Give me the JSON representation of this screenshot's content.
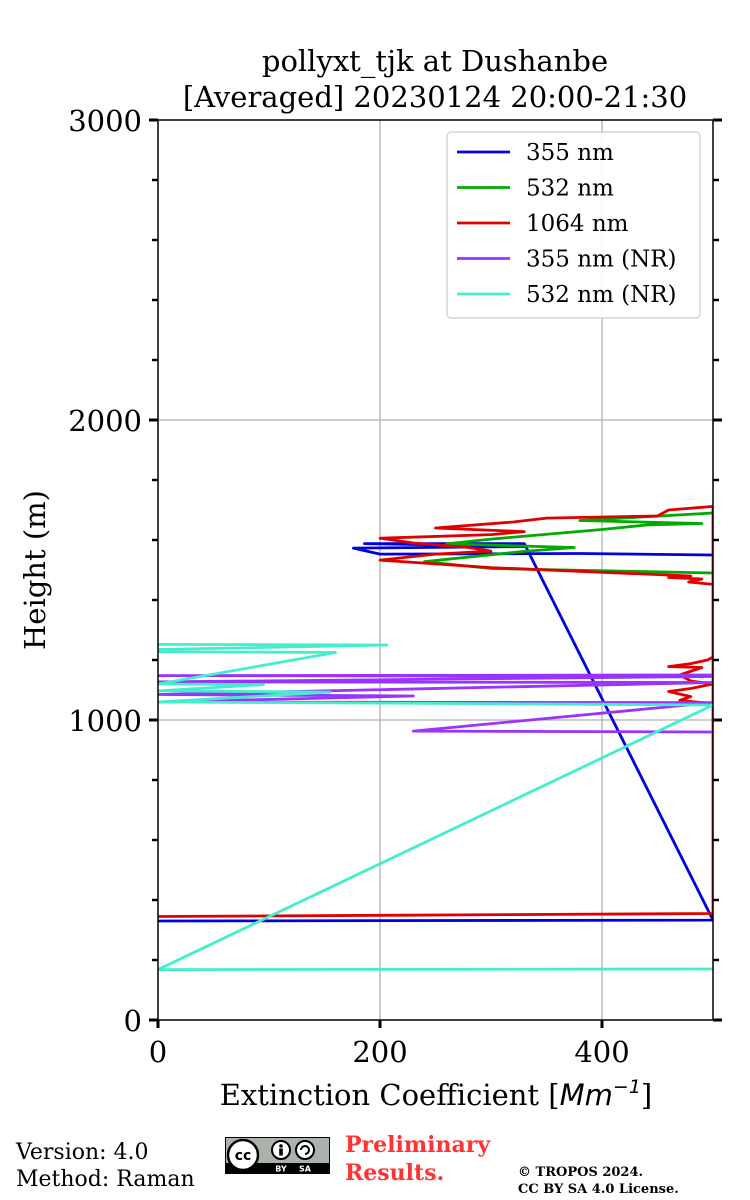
{
  "chart_data": {
    "type": "line",
    "title_line1": "pollyxt_tjk at Dushanbe",
    "title_line2": "[Averaged] 20230124 20:00-21:30",
    "xlabel_prefix": "Extinction Coefficient [",
    "xlabel_unit_base": "Mm",
    "xlabel_unit_exp": "−1",
    "xlabel_suffix": "]",
    "ylabel": "Height (m)",
    "xlim": [
      0,
      500
    ],
    "ylim": [
      0,
      3000
    ],
    "x_ticks": [
      "0",
      "200",
      "400"
    ],
    "x_tick_values": [
      0,
      200,
      400
    ],
    "y_ticks": [
      "0",
      "1000",
      "2000",
      "3000"
    ],
    "y_tick_values": [
      0,
      1000,
      2000,
      3000
    ],
    "y_minor_step": 200,
    "grid": true,
    "legend_position": "top-right",
    "series": [
      {
        "name": "355 nm",
        "color": "#0000e0",
        "points": [
          [
            500,
            1550
          ],
          [
            380,
            1555
          ],
          [
            200,
            1553
          ],
          [
            176,
            1573
          ],
          [
            330,
            1578
          ],
          [
            260,
            1583
          ],
          [
            186,
            1588
          ],
          [
            330,
            1588
          ],
          [
            500,
            333
          ],
          [
            0,
            330
          ]
        ]
      },
      {
        "name": "532 nm",
        "color": "#00aa00",
        "points": [
          [
            500,
            1490
          ],
          [
            300,
            1505
          ],
          [
            240,
            1528
          ],
          [
            330,
            1562
          ],
          [
            375,
            1575
          ],
          [
            260,
            1587
          ],
          [
            300,
            1603
          ],
          [
            400,
            1635
          ],
          [
            440,
            1650
          ],
          [
            490,
            1655
          ],
          [
            380,
            1665
          ],
          [
            500,
            1690
          ]
        ]
      },
      {
        "name": "1064 nm",
        "color": "#e00000",
        "points": [
          [
            500,
            1452
          ],
          [
            478,
            1460
          ],
          [
            490,
            1470
          ],
          [
            460,
            1475
          ],
          [
            480,
            1480
          ],
          [
            300,
            1508
          ],
          [
            220,
            1528
          ],
          [
            200,
            1533
          ],
          [
            250,
            1553
          ],
          [
            300,
            1563
          ],
          [
            280,
            1575
          ],
          [
            230,
            1590
          ],
          [
            200,
            1606
          ],
          [
            300,
            1618
          ],
          [
            330,
            1628
          ],
          [
            250,
            1640
          ],
          [
            320,
            1660
          ],
          [
            350,
            1673
          ],
          [
            450,
            1680
          ],
          [
            460,
            1700
          ],
          [
            500,
            1712
          ],
          [
            500,
            1055
          ],
          [
            470,
            1065
          ],
          [
            480,
            1078
          ],
          [
            460,
            1095
          ],
          [
            480,
            1105
          ],
          [
            500,
            1120
          ],
          [
            480,
            1130
          ],
          [
            470,
            1150
          ],
          [
            490,
            1175
          ],
          [
            460,
            1178
          ],
          [
            480,
            1188
          ],
          [
            495,
            1200
          ],
          [
            500,
            1210
          ],
          [
            500,
            355
          ],
          [
            0,
            345
          ]
        ]
      },
      {
        "name": "355 nm (NR)",
        "color": "#9933ff",
        "points": [
          [
            500,
            960
          ],
          [
            230,
            963
          ],
          [
            500,
            1058
          ],
          [
            0,
            1060
          ],
          [
            230,
            1080
          ],
          [
            0,
            1085
          ],
          [
            500,
            1125
          ],
          [
            0,
            1127
          ],
          [
            500,
            1145
          ],
          [
            0,
            1148
          ],
          [
            500,
            1150
          ]
        ]
      },
      {
        "name": "532 nm (NR)",
        "color": "#44eecc",
        "points": [
          [
            500,
            170
          ],
          [
            0,
            168
          ],
          [
            500,
            1050
          ],
          [
            270,
            1055
          ],
          [
            0,
            1060
          ],
          [
            155,
            1093
          ],
          [
            0,
            1097
          ],
          [
            95,
            1118
          ],
          [
            0,
            1120
          ],
          [
            160,
            1225
          ],
          [
            0,
            1228
          ],
          [
            0,
            1235
          ],
          [
            206,
            1250
          ],
          [
            0,
            1252
          ]
        ]
      }
    ]
  },
  "footer": {
    "version": "Version: 4.0",
    "method": "Method: Raman",
    "preliminary_line1": "Preliminary",
    "preliminary_line2": "Results.",
    "copyright_line1": "© TROPOS 2024.",
    "copyright_line2": "CC BY SA 4.0 License.",
    "cc_badge_text": "cc",
    "cc_by": "BY",
    "cc_sa": "SA"
  },
  "colors": {
    "preliminary": "#ff3333",
    "grid": "#b0b0b0"
  }
}
